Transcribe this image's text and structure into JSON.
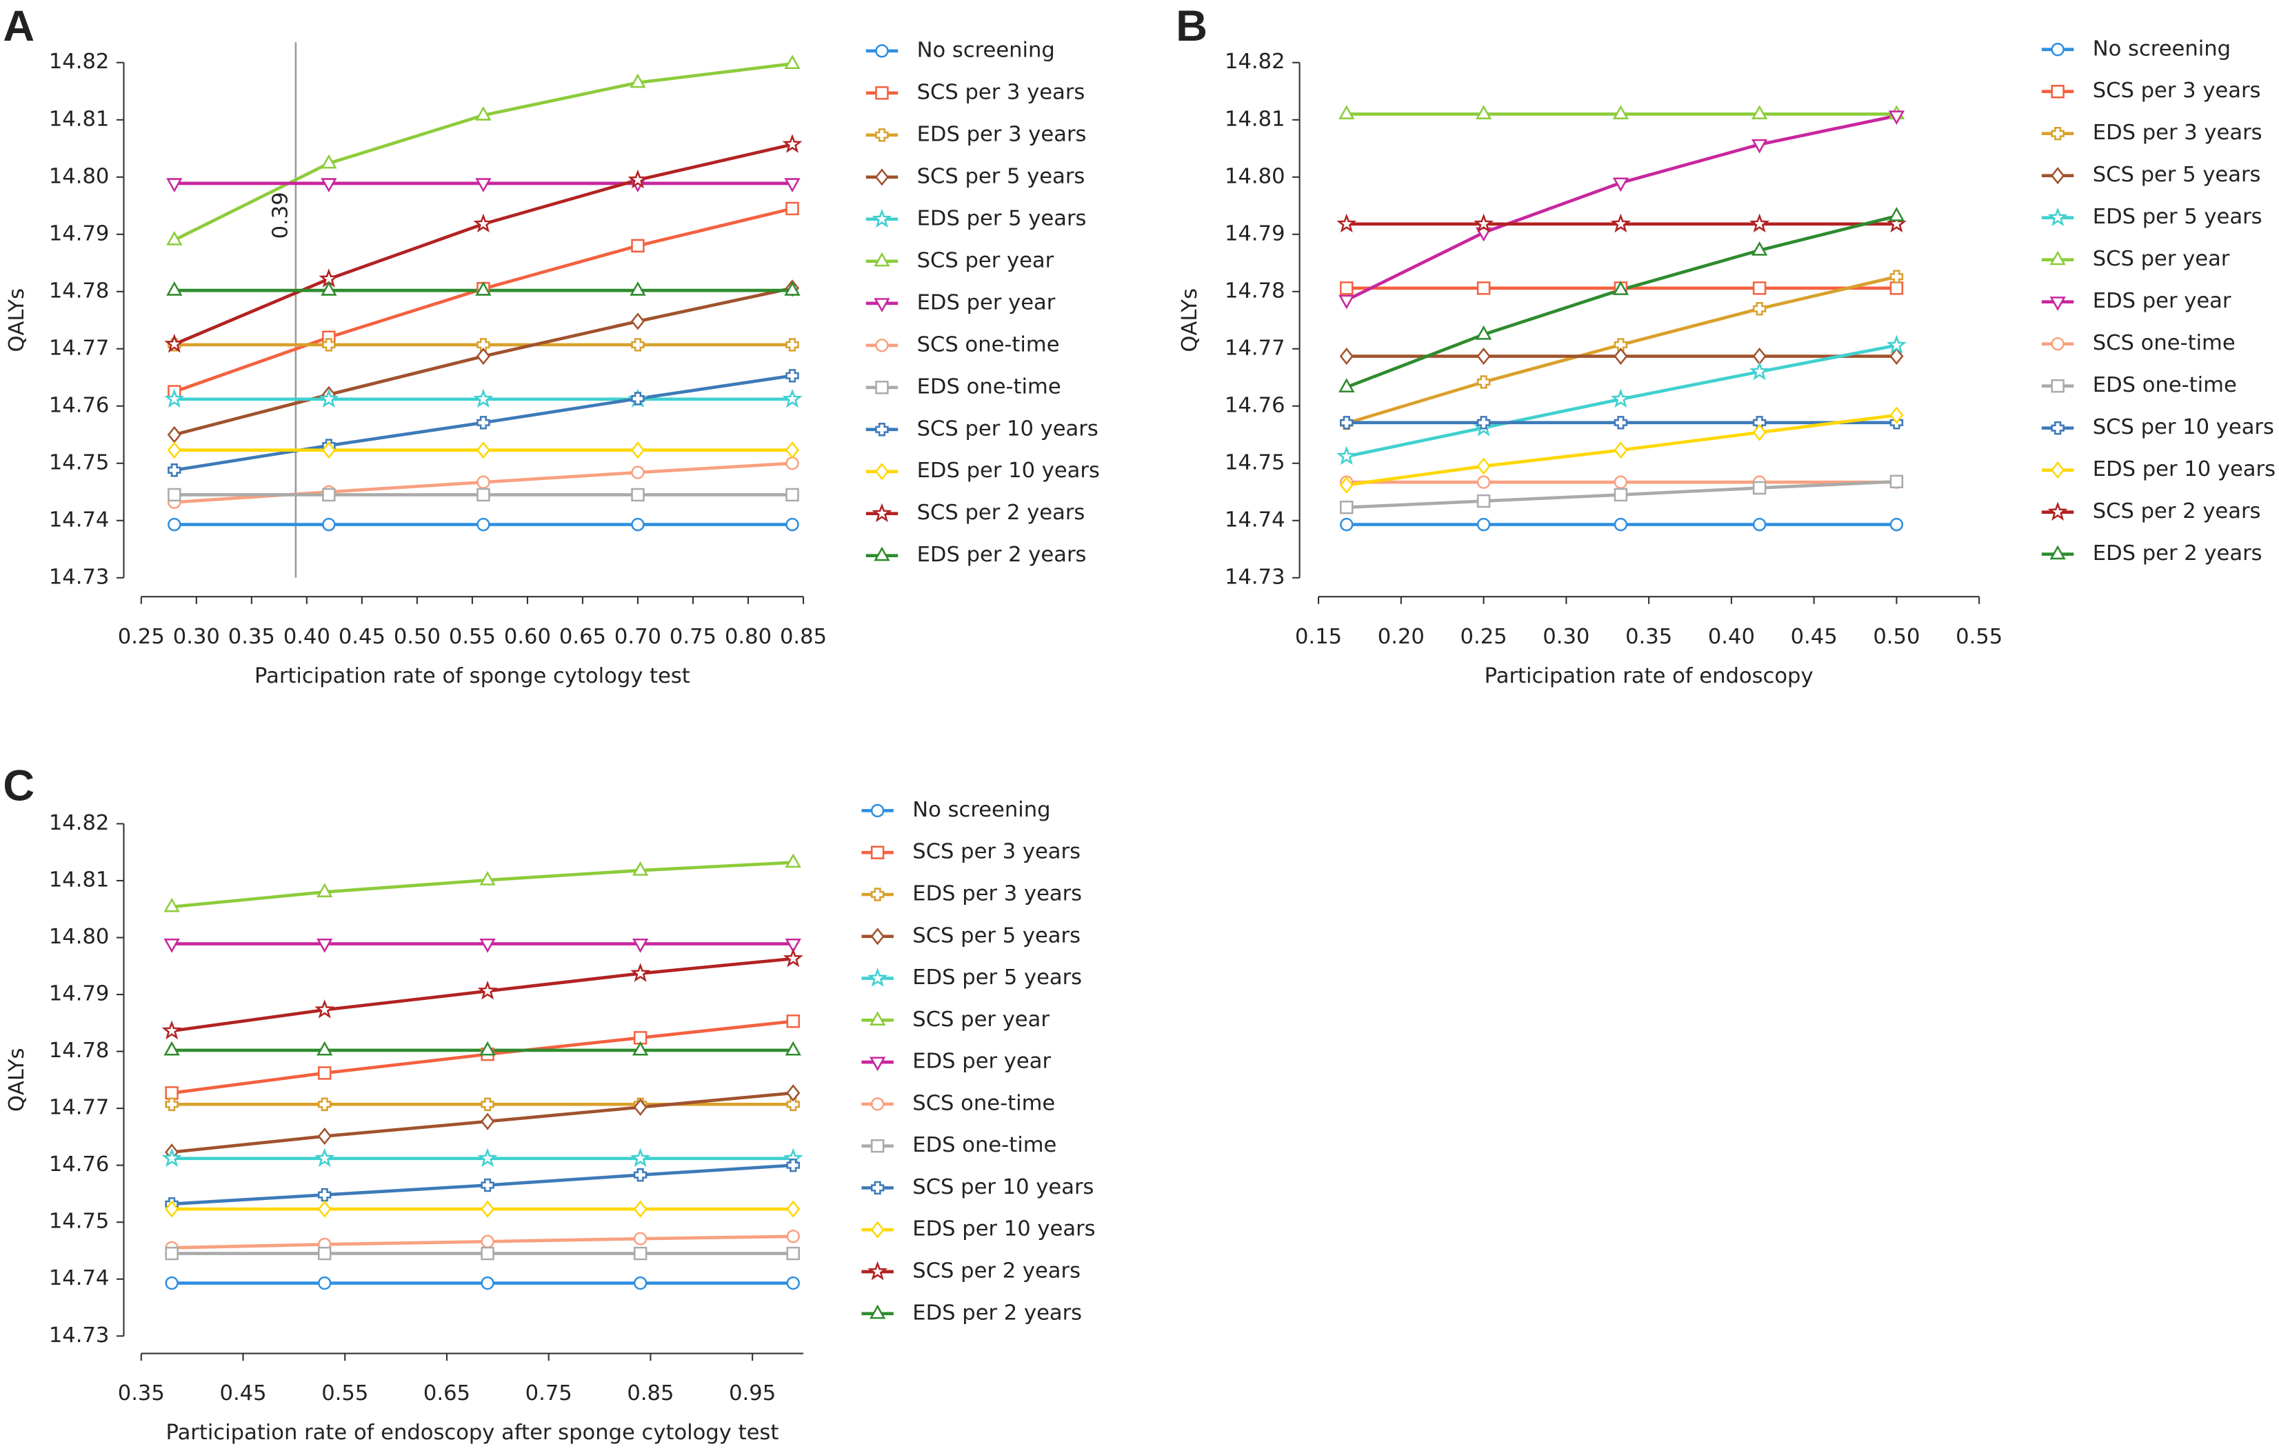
{
  "chart_data": [
    {
      "type": "line",
      "panel": "A",
      "xlabel": "Participation rate of sponge cytology test",
      "ylabel": "QALYs",
      "x": [
        0.28,
        0.42,
        0.56,
        0.7,
        0.84
      ],
      "xlim": [
        0.25,
        0.85
      ],
      "xticks": [
        0.25,
        {
          "value": 0.3,
          "label": "0.30"
        },
        0.35,
        {
          "value": 0.4,
          "label": "0.40"
        },
        0.45,
        {
          "value": 0.5,
          "label": "0.50"
        },
        0.55,
        {
          "value": 0.6,
          "label": "0.60"
        },
        0.65,
        {
          "value": 0.7,
          "label": "0.70"
        },
        0.75,
        {
          "value": 0.8,
          "label": "0.80"
        },
        0.85
      ],
      "ylim": [
        14.73,
        14.82
      ],
      "yticks": [
        14.73,
        14.74,
        14.75,
        14.76,
        14.77,
        14.78,
        14.79,
        {
          "value": 14.8,
          "label": "14.80"
        },
        14.81,
        14.82
      ],
      "vline": 0.39,
      "series": [
        {
          "name": "No screening",
          "color": "#2e8fe0",
          "marker": "circle",
          "values": [
            14.7393,
            14.7393,
            14.7393,
            14.7393,
            14.7393
          ]
        },
        {
          "name": "SCS per 3 years",
          "color": "#f4613f",
          "marker": "square",
          "values": [
            14.7625,
            14.772,
            14.7805,
            14.788,
            14.7945
          ]
        },
        {
          "name": "EDS per 3 years",
          "color": "#d9a02b",
          "marker": "plus",
          "values": [
            14.7707,
            14.7707,
            14.7707,
            14.7707,
            14.7707
          ]
        },
        {
          "name": "SCS per 5 years",
          "color": "#a0522d",
          "marker": "diamond",
          "values": [
            14.755,
            14.762,
            14.7687,
            14.7748,
            14.7806
          ]
        },
        {
          "name": "EDS per 5 years",
          "color": "#40d0d0",
          "marker": "star",
          "values": [
            14.7612,
            14.7612,
            14.7612,
            14.7612,
            14.7612
          ]
        },
        {
          "name": "SCS per year",
          "color": "#8ccc3a",
          "marker": "triangle",
          "values": [
            14.789,
            14.8024,
            14.8108,
            14.8165,
            14.8198
          ]
        },
        {
          "name": "EDS per year",
          "color": "#c8269e",
          "marker": "down",
          "values": [
            14.7989,
            14.7989,
            14.7989,
            14.7989,
            14.7989
          ]
        },
        {
          "name": "SCS one-time",
          "color": "#f9a080",
          "marker": "circle",
          "values": [
            14.7432,
            14.745,
            14.7467,
            14.7484,
            14.75
          ]
        },
        {
          "name": "EDS one-time",
          "color": "#aaaaaa",
          "marker": "square",
          "values": [
            14.7445,
            14.7445,
            14.7445,
            14.7445,
            14.7445
          ]
        },
        {
          "name": "SCS per 10 years",
          "color": "#3d7ab8",
          "marker": "plus",
          "values": [
            14.7488,
            14.7531,
            14.7571,
            14.7613,
            14.7653
          ]
        },
        {
          "name": "EDS per 10 years",
          "color": "#ffd700",
          "marker": "diamond",
          "values": [
            14.7523,
            14.7523,
            14.7523,
            14.7523,
            14.7523
          ]
        },
        {
          "name": "SCS per 2 years",
          "color": "#b22222",
          "marker": "star",
          "values": [
            14.7708,
            14.7822,
            14.7918,
            14.7995,
            14.8057
          ]
        },
        {
          "name": "EDS per 2 years",
          "color": "#2e8b2e",
          "marker": "triangle",
          "values": [
            14.7802,
            14.7802,
            14.7802,
            14.7802,
            14.7802
          ]
        }
      ]
    },
    {
      "type": "line",
      "panel": "B",
      "xlabel": "Participation rate of endoscopy",
      "ylabel": "QALYs",
      "x": [
        0.167,
        0.25,
        0.333,
        0.417,
        0.5
      ],
      "xlim": [
        0.15,
        0.55
      ],
      "xticks": [
        0.15,
        {
          "value": 0.2,
          "label": "0.20"
        },
        0.25,
        {
          "value": 0.3,
          "label": "0.30"
        },
        0.35,
        {
          "value": 0.4,
          "label": "0.40"
        },
        0.45,
        {
          "value": 0.5,
          "label": "0.50"
        },
        0.55
      ],
      "ylim": [
        14.73,
        14.82
      ],
      "yticks": [
        14.73,
        14.74,
        14.75,
        14.76,
        14.77,
        14.78,
        14.79,
        {
          "value": 14.8,
          "label": "14.80"
        },
        14.81,
        14.82
      ],
      "series": [
        {
          "name": "No screening",
          "color": "#2e8fe0",
          "marker": "circle",
          "values": [
            14.7393,
            14.7393,
            14.7393,
            14.7393,
            14.7393
          ]
        },
        {
          "name": "SCS per 3 years",
          "color": "#f4613f",
          "marker": "square",
          "values": [
            14.7806,
            14.7806,
            14.7806,
            14.7806,
            14.7806
          ]
        },
        {
          "name": "EDS per 3 years",
          "color": "#d9a02b",
          "marker": "plus",
          "values": [
            14.757,
            14.7642,
            14.7707,
            14.777,
            14.7826
          ]
        },
        {
          "name": "SCS per 5 years",
          "color": "#a0522d",
          "marker": "diamond",
          "values": [
            14.7687,
            14.7687,
            14.7687,
            14.7687,
            14.7687
          ]
        },
        {
          "name": "EDS per 5 years",
          "color": "#40d0d0",
          "marker": "star",
          "values": [
            14.7512,
            14.7562,
            14.7612,
            14.766,
            14.7706
          ]
        },
        {
          "name": "SCS per year",
          "color": "#8ccc3a",
          "marker": "triangle",
          "values": [
            14.811,
            14.811,
            14.811,
            14.811,
            14.811
          ]
        },
        {
          "name": "EDS per year",
          "color": "#c8269e",
          "marker": "down",
          "values": [
            14.7785,
            14.7903,
            14.799,
            14.8057,
            14.8107
          ]
        },
        {
          "name": "SCS one-time",
          "color": "#f9a080",
          "marker": "circle",
          "values": [
            14.7467,
            14.7467,
            14.7467,
            14.7467,
            14.7467
          ]
        },
        {
          "name": "EDS one-time",
          "color": "#aaaaaa",
          "marker": "square",
          "values": [
            14.7423,
            14.7434,
            14.7445,
            14.7457,
            14.7468
          ]
        },
        {
          "name": "SCS per 10 years",
          "color": "#3d7ab8",
          "marker": "plus",
          "values": [
            14.7571,
            14.7571,
            14.7571,
            14.7571,
            14.7571
          ]
        },
        {
          "name": "EDS per 10 years",
          "color": "#ffd700",
          "marker": "diamond",
          "values": [
            14.7462,
            14.7495,
            14.7523,
            14.7554,
            14.7584
          ]
        },
        {
          "name": "SCS per 2 years",
          "color": "#b22222",
          "marker": "star",
          "values": [
            14.7918,
            14.7918,
            14.7918,
            14.7918,
            14.7918
          ]
        },
        {
          "name": "EDS per 2 years",
          "color": "#2e8b2e",
          "marker": "triangle",
          "values": [
            14.7633,
            14.7725,
            14.7803,
            14.7872,
            14.7932
          ]
        }
      ]
    },
    {
      "type": "line",
      "panel": "C",
      "xlabel": "Participation rate of endoscopy after sponge cytology test",
      "ylabel": "QALYs",
      "x": [
        0.38,
        0.53,
        0.69,
        0.84,
        0.99
      ],
      "xlim": [
        0.35,
        1.0
      ],
      "xticks": [
        0.35,
        0.45,
        0.55,
        0.65,
        0.75,
        0.85,
        0.95
      ],
      "ylim": [
        14.73,
        14.82
      ],
      "yticks": [
        14.73,
        14.74,
        14.75,
        14.76,
        14.77,
        14.78,
        14.79,
        {
          "value": 14.8,
          "label": "14.80"
        },
        14.81,
        14.82
      ],
      "series": [
        {
          "name": "No screening",
          "color": "#2e8fe0",
          "marker": "circle",
          "values": [
            14.7393,
            14.7393,
            14.7393,
            14.7393,
            14.7393
          ]
        },
        {
          "name": "SCS per 3 years",
          "color": "#f4613f",
          "marker": "square",
          "values": [
            14.7727,
            14.7762,
            14.7795,
            14.7824,
            14.7853
          ]
        },
        {
          "name": "EDS per 3 years",
          "color": "#d9a02b",
          "marker": "plus",
          "values": [
            14.7707,
            14.7707,
            14.7707,
            14.7707,
            14.7707
          ]
        },
        {
          "name": "SCS per 5 years",
          "color": "#a0522d",
          "marker": "diamond",
          "values": [
            14.7623,
            14.7651,
            14.7677,
            14.7702,
            14.7727
          ]
        },
        {
          "name": "EDS per 5 years",
          "color": "#40d0d0",
          "marker": "star",
          "values": [
            14.7612,
            14.7612,
            14.7612,
            14.7612,
            14.7612
          ]
        },
        {
          "name": "SCS per year",
          "color": "#8ccc3a",
          "marker": "triangle",
          "values": [
            14.8054,
            14.808,
            14.8101,
            14.8118,
            14.8132
          ]
        },
        {
          "name": "EDS per year",
          "color": "#c8269e",
          "marker": "down",
          "values": [
            14.7989,
            14.7989,
            14.7989,
            14.7989,
            14.7989
          ]
        },
        {
          "name": "SCS one-time",
          "color": "#f9a080",
          "marker": "circle",
          "values": [
            14.7455,
            14.7461,
            14.7466,
            14.7471,
            14.7475
          ]
        },
        {
          "name": "EDS one-time",
          "color": "#aaaaaa",
          "marker": "square",
          "values": [
            14.7445,
            14.7445,
            14.7445,
            14.7445,
            14.7445
          ]
        },
        {
          "name": "SCS per 10 years",
          "color": "#3d7ab8",
          "marker": "plus",
          "values": [
            14.7532,
            14.7548,
            14.7565,
            14.7583,
            14.76
          ]
        },
        {
          "name": "EDS per 10 years",
          "color": "#ffd700",
          "marker": "diamond",
          "values": [
            14.7523,
            14.7523,
            14.7523,
            14.7523,
            14.7523
          ]
        },
        {
          "name": "SCS per 2 years",
          "color": "#b22222",
          "marker": "star",
          "values": [
            14.7836,
            14.7873,
            14.7906,
            14.7937,
            14.7963
          ]
        },
        {
          "name": "EDS per 2 years",
          "color": "#2e8b2e",
          "marker": "triangle",
          "values": [
            14.7802,
            14.7802,
            14.7802,
            14.7802,
            14.7802
          ]
        }
      ]
    }
  ]
}
